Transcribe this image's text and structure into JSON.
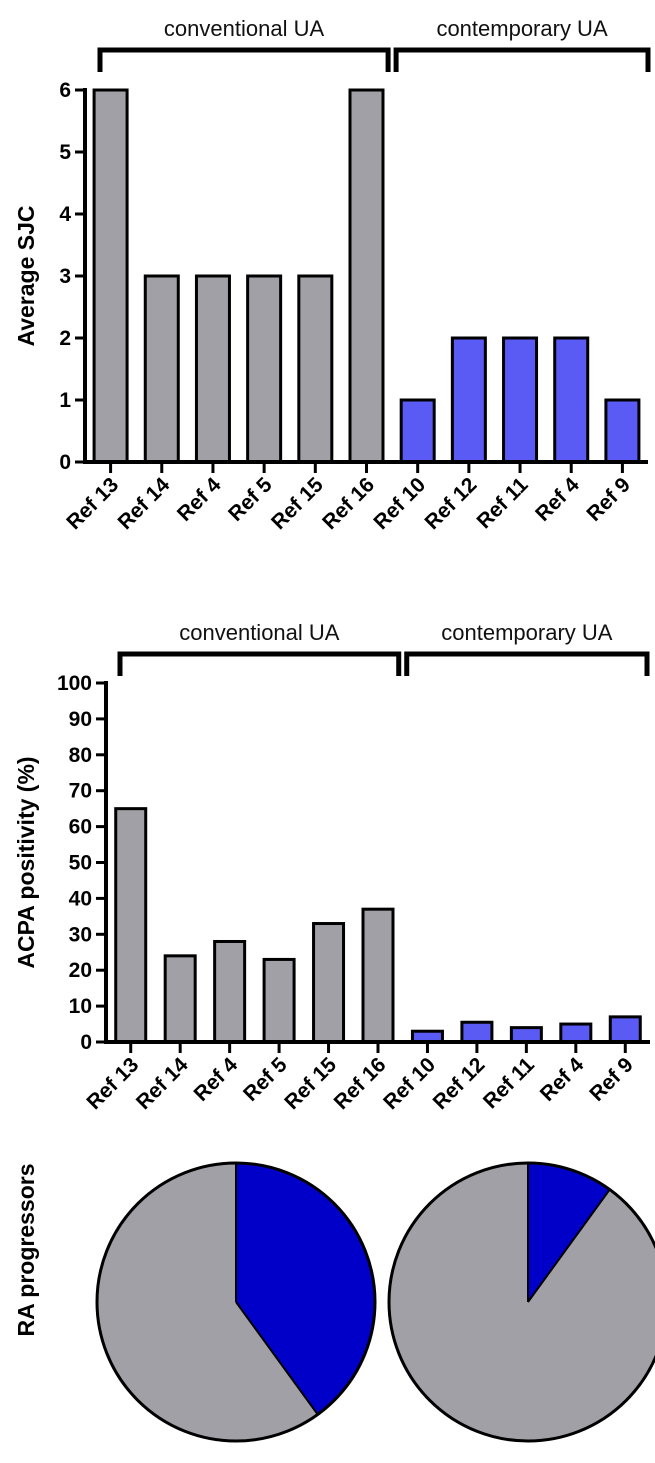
{
  "colors": {
    "conventional": "#a0a0a6",
    "contemporary": "#5a5af5",
    "pie_conventional": "#a0a0a6",
    "pie_highlight": "#0000c8",
    "stroke": "#000000"
  },
  "chart_data": [
    {
      "type": "bar",
      "ylabel": "Average SJC",
      "ylim": [
        0,
        6
      ],
      "yticks": [
        0,
        1,
        2,
        3,
        4,
        5,
        6
      ],
      "categories": [
        "Ref 13",
        "Ref 14",
        "Ref 4",
        "Ref 5",
        "Ref 15",
        "Ref 16",
        "Ref 10",
        "Ref 12",
        "Ref 11",
        "Ref 4",
        "Ref 9"
      ],
      "values": [
        6,
        3,
        3,
        3,
        3,
        6,
        1,
        2,
        2,
        2,
        1
      ],
      "groups": [
        {
          "label": "conventional UA",
          "count": 6
        },
        {
          "label": "contemporary UA",
          "count": 5
        }
      ]
    },
    {
      "type": "bar",
      "ylabel": "ACPA positivity (%)",
      "ylim": [
        0,
        100
      ],
      "yticks": [
        0,
        10,
        20,
        30,
        40,
        50,
        60,
        70,
        80,
        90,
        100
      ],
      "categories": [
        "Ref 13",
        "Ref 14",
        "Ref 4",
        "Ref 5",
        "Ref 15",
        "Ref 16",
        "Ref 10",
        "Ref 12",
        "Ref 11",
        "Ref 4",
        "Ref 9"
      ],
      "values": [
        65,
        24,
        28,
        23,
        33,
        37,
        3,
        5.5,
        4,
        5,
        7
      ],
      "groups": [
        {
          "label": "conventional UA",
          "count": 6
        },
        {
          "label": "contemporary UA",
          "count": 5
        }
      ]
    },
    {
      "type": "pie",
      "ylabel": "RA progressors",
      "pies": [
        {
          "group": "conventional",
          "highlight_fraction": 0.4
        },
        {
          "group": "contemporary",
          "highlight_fraction": 0.1
        }
      ]
    }
  ]
}
